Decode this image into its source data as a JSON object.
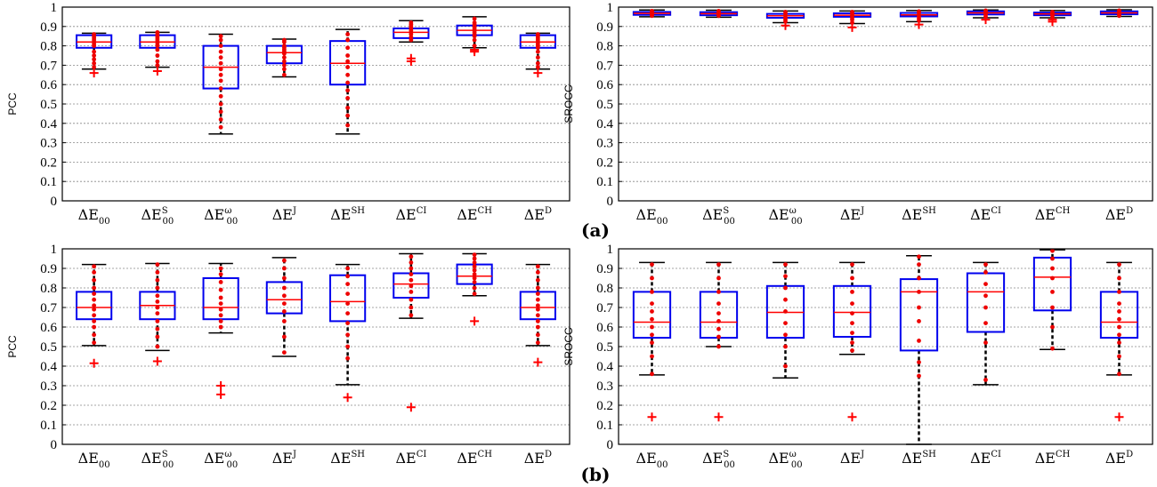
{
  "panel_labels": [
    "(a)",
    "(b)"
  ],
  "categories": [
    {
      "base": "ΔE",
      "sub": "00",
      "sup": ""
    },
    {
      "base": "ΔE",
      "sub": "00",
      "sup": "S"
    },
    {
      "base": "ΔE",
      "sub": "00",
      "sup": "ω"
    },
    {
      "base": "ΔE",
      "sub": "",
      "sup": "J"
    },
    {
      "base": "ΔE",
      "sub": "",
      "sup": "SH"
    },
    {
      "base": "ΔE",
      "sub": "",
      "sup": "CI"
    },
    {
      "base": "ΔE",
      "sub": "",
      "sup": "CH"
    },
    {
      "base": "ΔE",
      "sub": "",
      "sup": "D"
    }
  ],
  "colors": {
    "box": "#0000ee",
    "median": "#ff0000",
    "points": "#ee0000",
    "whisker": "#000000",
    "grid": "#888888"
  },
  "chart_data": [
    {
      "type": "box",
      "panel": "(a)",
      "ylabel": "PCC",
      "ylim": [
        0,
        1
      ],
      "yticks": [
        "0",
        "0.1",
        "0.2",
        "0.3",
        "0.4",
        "0.5",
        "0.6",
        "0.7",
        "0.8",
        "0.9",
        "1"
      ],
      "grid": true,
      "boxes": [
        {
          "q1": 0.79,
          "median": 0.82,
          "q3": 0.855,
          "whisker_low": 0.68,
          "whisker_high": 0.865,
          "outliers": [
            0.66
          ],
          "points": [
            0.69,
            0.71,
            0.73,
            0.75,
            0.77,
            0.8,
            0.81,
            0.82,
            0.83,
            0.84,
            0.85,
            0.86
          ]
        },
        {
          "q1": 0.79,
          "median": 0.82,
          "q3": 0.855,
          "whisker_low": 0.69,
          "whisker_high": 0.87,
          "outliers": [
            0.67
          ],
          "points": [
            0.7,
            0.72,
            0.75,
            0.78,
            0.8,
            0.81,
            0.82,
            0.83,
            0.84,
            0.85,
            0.86,
            0.87
          ]
        },
        {
          "q1": 0.58,
          "median": 0.69,
          "q3": 0.8,
          "whisker_low": 0.345,
          "whisker_high": 0.86,
          "outliers": [],
          "points": [
            0.38,
            0.42,
            0.46,
            0.5,
            0.54,
            0.58,
            0.62,
            0.65,
            0.68,
            0.71,
            0.74,
            0.77,
            0.8,
            0.83,
            0.85
          ]
        },
        {
          "q1": 0.71,
          "median": 0.765,
          "q3": 0.8,
          "whisker_low": 0.64,
          "whisker_high": 0.835,
          "outliers": [],
          "points": [
            0.65,
            0.68,
            0.7,
            0.72,
            0.74,
            0.76,
            0.77,
            0.78,
            0.79,
            0.8,
            0.82,
            0.83
          ]
        },
        {
          "q1": 0.6,
          "median": 0.71,
          "q3": 0.825,
          "whisker_low": 0.345,
          "whisker_high": 0.885,
          "outliers": [],
          "points": [
            0.39,
            0.44,
            0.48,
            0.53,
            0.57,
            0.61,
            0.65,
            0.69,
            0.72,
            0.75,
            0.79,
            0.83,
            0.86
          ]
        },
        {
          "q1": 0.84,
          "median": 0.87,
          "q3": 0.89,
          "whisker_low": 0.82,
          "whisker_high": 0.93,
          "outliers": [
            0.72,
            0.735
          ],
          "points": [
            0.83,
            0.845,
            0.86,
            0.87,
            0.88,
            0.89,
            0.9,
            0.91,
            0.92
          ]
        },
        {
          "q1": 0.855,
          "median": 0.88,
          "q3": 0.905,
          "whisker_low": 0.79,
          "whisker_high": 0.95,
          "outliers": [
            0.77,
            0.78
          ],
          "points": [
            0.8,
            0.83,
            0.85,
            0.86,
            0.87,
            0.88,
            0.89,
            0.9,
            0.91,
            0.92,
            0.94
          ]
        },
        {
          "q1": 0.79,
          "median": 0.82,
          "q3": 0.855,
          "whisker_low": 0.68,
          "whisker_high": 0.865,
          "outliers": [
            0.66
          ],
          "points": [
            0.69,
            0.71,
            0.74,
            0.77,
            0.79,
            0.8,
            0.81,
            0.82,
            0.83,
            0.84,
            0.85,
            0.86
          ]
        }
      ]
    },
    {
      "type": "box",
      "panel": "(a)",
      "ylabel": "SROCC",
      "ylim": [
        0,
        1
      ],
      "yticks": [
        "0",
        "0.1",
        "0.2",
        "0.3",
        "0.4",
        "0.5",
        "0.6",
        "0.7",
        "0.8",
        "0.9",
        "1"
      ],
      "grid": true,
      "boxes": [
        {
          "q1": 0.96,
          "median": 0.968,
          "q3": 0.975,
          "whisker_low": 0.95,
          "whisker_high": 0.985,
          "outliers": [],
          "points": [
            0.955,
            0.96,
            0.965,
            0.97,
            0.975,
            0.98
          ]
        },
        {
          "q1": 0.958,
          "median": 0.966,
          "q3": 0.974,
          "whisker_low": 0.948,
          "whisker_high": 0.984,
          "outliers": [],
          "points": [
            0.955,
            0.96,
            0.965,
            0.97,
            0.975,
            0.98
          ]
        },
        {
          "q1": 0.945,
          "median": 0.955,
          "q3": 0.965,
          "whisker_low": 0.92,
          "whisker_high": 0.98,
          "outliers": [
            0.905
          ],
          "points": [
            0.925,
            0.935,
            0.945,
            0.955,
            0.965,
            0.975
          ]
        },
        {
          "q1": 0.95,
          "median": 0.958,
          "q3": 0.968,
          "whisker_low": 0.915,
          "whisker_high": 0.98,
          "outliers": [
            0.895
          ],
          "points": [
            0.92,
            0.935,
            0.945,
            0.955,
            0.965,
            0.975
          ]
        },
        {
          "q1": 0.952,
          "median": 0.96,
          "q3": 0.97,
          "whisker_low": 0.925,
          "whisker_high": 0.982,
          "outliers": [
            0.91
          ],
          "points": [
            0.93,
            0.94,
            0.95,
            0.96,
            0.97,
            0.978
          ]
        },
        {
          "q1": 0.962,
          "median": 0.97,
          "q3": 0.978,
          "whisker_low": 0.945,
          "whisker_high": 0.985,
          "outliers": [
            0.935
          ],
          "points": [
            0.95,
            0.96,
            0.965,
            0.972,
            0.978,
            0.982
          ]
        },
        {
          "q1": 0.958,
          "median": 0.965,
          "q3": 0.972,
          "whisker_low": 0.945,
          "whisker_high": 0.982,
          "outliers": [
            0.925,
            0.935
          ],
          "points": [
            0.945,
            0.955,
            0.962,
            0.968,
            0.975
          ]
        },
        {
          "q1": 0.963,
          "median": 0.97,
          "q3": 0.978,
          "whisker_low": 0.952,
          "whisker_high": 0.986,
          "outliers": [],
          "points": [
            0.955,
            0.962,
            0.97,
            0.975,
            0.982
          ]
        }
      ]
    },
    {
      "type": "box",
      "panel": "(b)",
      "ylabel": "PCC",
      "ylim": [
        0,
        1
      ],
      "yticks": [
        "0",
        "0.1",
        "0.2",
        "0.3",
        "0.4",
        "0.5",
        "0.6",
        "0.7",
        "0.8",
        "0.9",
        "1"
      ],
      "grid": true,
      "boxes": [
        {
          "q1": 0.64,
          "median": 0.7,
          "q3": 0.78,
          "whisker_low": 0.505,
          "whisker_high": 0.92,
          "outliers": [
            0.415
          ],
          "points": [
            0.52,
            0.56,
            0.6,
            0.63,
            0.66,
            0.69,
            0.71,
            0.74,
            0.77,
            0.8,
            0.84,
            0.88,
            0.91
          ]
        },
        {
          "q1": 0.64,
          "median": 0.71,
          "q3": 0.78,
          "whisker_low": 0.48,
          "whisker_high": 0.925,
          "outliers": [
            0.425
          ],
          "points": [
            0.5,
            0.55,
            0.59,
            0.63,
            0.67,
            0.7,
            0.73,
            0.76,
            0.8,
            0.84,
            0.88,
            0.92
          ]
        },
        {
          "q1": 0.64,
          "median": 0.7,
          "q3": 0.85,
          "whisker_low": 0.57,
          "whisker_high": 0.925,
          "outliers": [
            0.255,
            0.3
          ],
          "points": [
            0.6,
            0.63,
            0.66,
            0.69,
            0.72,
            0.75,
            0.79,
            0.83,
            0.87,
            0.9
          ]
        },
        {
          "q1": 0.67,
          "median": 0.74,
          "q3": 0.83,
          "whisker_low": 0.45,
          "whisker_high": 0.955,
          "outliers": [],
          "points": [
            0.47,
            0.55,
            0.63,
            0.68,
            0.72,
            0.76,
            0.8,
            0.85,
            0.9,
            0.94
          ]
        },
        {
          "q1": 0.63,
          "median": 0.73,
          "q3": 0.865,
          "whisker_low": 0.305,
          "whisker_high": 0.92,
          "outliers": [
            0.24
          ],
          "points": [
            0.44,
            0.5,
            0.56,
            0.62,
            0.67,
            0.72,
            0.77,
            0.82,
            0.86,
            0.9
          ]
        },
        {
          "q1": 0.75,
          "median": 0.82,
          "q3": 0.875,
          "whisker_low": 0.645,
          "whisker_high": 0.975,
          "outliers": [
            0.19
          ],
          "points": [
            0.66,
            0.7,
            0.74,
            0.78,
            0.81,
            0.84,
            0.87,
            0.9,
            0.93,
            0.96
          ]
        },
        {
          "q1": 0.82,
          "median": 0.86,
          "q3": 0.92,
          "whisker_low": 0.76,
          "whisker_high": 0.975,
          "outliers": [
            0.63
          ],
          "points": [
            0.77,
            0.8,
            0.83,
            0.85,
            0.87,
            0.89,
            0.91,
            0.93,
            0.95,
            0.97
          ]
        },
        {
          "q1": 0.64,
          "median": 0.7,
          "q3": 0.78,
          "whisker_low": 0.505,
          "whisker_high": 0.92,
          "outliers": [
            0.42
          ],
          "points": [
            0.52,
            0.56,
            0.6,
            0.63,
            0.66,
            0.69,
            0.71,
            0.74,
            0.77,
            0.8,
            0.84,
            0.88,
            0.91
          ]
        }
      ]
    },
    {
      "type": "box",
      "panel": "(b)",
      "ylabel": "SROCC",
      "ylim": [
        0,
        1
      ],
      "yticks": [
        "0",
        "0.1",
        "0.2",
        "0.3",
        "0.4",
        "0.5",
        "0.6",
        "0.7",
        "0.8",
        "0.9",
        "1"
      ],
      "grid": true,
      "boxes": [
        {
          "q1": 0.545,
          "median": 0.625,
          "q3": 0.78,
          "whisker_low": 0.355,
          "whisker_high": 0.93,
          "outliers": [
            0.14
          ],
          "points": [
            0.36,
            0.45,
            0.52,
            0.56,
            0.6,
            0.64,
            0.68,
            0.72,
            0.78,
            0.85,
            0.92
          ]
        },
        {
          "q1": 0.545,
          "median": 0.625,
          "q3": 0.78,
          "whisker_low": 0.5,
          "whisker_high": 0.93,
          "outliers": [
            0.14
          ],
          "points": [
            0.5,
            0.55,
            0.59,
            0.63,
            0.67,
            0.72,
            0.78,
            0.85,
            0.92
          ]
        },
        {
          "q1": 0.545,
          "median": 0.675,
          "q3": 0.81,
          "whisker_low": 0.34,
          "whisker_high": 0.93,
          "outliers": [],
          "points": [
            0.4,
            0.5,
            0.56,
            0.62,
            0.68,
            0.74,
            0.8,
            0.86,
            0.92
          ]
        },
        {
          "q1": 0.55,
          "median": 0.675,
          "q3": 0.81,
          "whisker_low": 0.46,
          "whisker_high": 0.93,
          "outliers": [
            0.14
          ],
          "points": [
            0.48,
            0.52,
            0.57,
            0.62,
            0.67,
            0.72,
            0.78,
            0.85,
            0.92
          ]
        },
        {
          "q1": 0.48,
          "median": 0.78,
          "q3": 0.845,
          "whisker_low": 0.0,
          "whisker_high": 0.965,
          "outliers": [],
          "points": [
            0.35,
            0.42,
            0.53,
            0.63,
            0.7,
            0.78,
            0.85,
            0.92,
            0.96
          ]
        },
        {
          "q1": 0.575,
          "median": 0.78,
          "q3": 0.875,
          "whisker_low": 0.305,
          "whisker_high": 0.93,
          "outliers": [],
          "points": [
            0.33,
            0.52,
            0.62,
            0.7,
            0.76,
            0.82,
            0.88,
            0.92
          ]
        },
        {
          "q1": 0.685,
          "median": 0.855,
          "q3": 0.955,
          "whisker_low": 0.485,
          "whisker_high": 0.995,
          "outliers": [],
          "points": [
            0.49,
            0.6,
            0.7,
            0.78,
            0.85,
            0.9,
            0.95,
            0.99
          ]
        },
        {
          "q1": 0.545,
          "median": 0.625,
          "q3": 0.78,
          "whisker_low": 0.355,
          "whisker_high": 0.93,
          "outliers": [
            0.14
          ],
          "points": [
            0.36,
            0.45,
            0.52,
            0.56,
            0.6,
            0.64,
            0.68,
            0.72,
            0.78,
            0.85,
            0.92
          ]
        }
      ]
    }
  ]
}
